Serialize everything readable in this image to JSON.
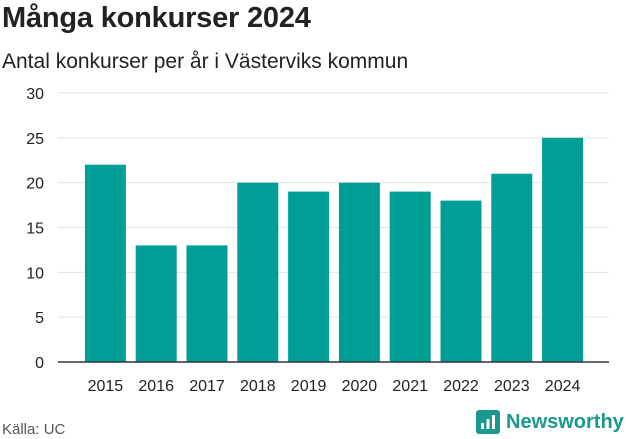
{
  "colors": {
    "bar": "#009e96",
    "grid": "#e3e3e3",
    "axis": "#333333",
    "brand": "#1a9a8e"
  },
  "chart_data": {
    "type": "bar",
    "title": "Många konkurser 2024",
    "subtitle": "Antal konkurser per år i Västerviks kommun",
    "xlabel": "",
    "ylabel": "",
    "categories": [
      "2015",
      "2016",
      "2017",
      "2018",
      "2019",
      "2020",
      "2021",
      "2022",
      "2023",
      "2024"
    ],
    "values": [
      22,
      13,
      13,
      20,
      19,
      20,
      19,
      18,
      21,
      25
    ],
    "ylim": [
      0,
      30
    ],
    "yticks": [
      0,
      5,
      10,
      15,
      20,
      25,
      30
    ],
    "grid": true,
    "legend": "none"
  },
  "footer": {
    "source": "Källa: UC",
    "brand": "Newsworthy",
    "brand_icon": "newsworthy-logo-icon"
  }
}
